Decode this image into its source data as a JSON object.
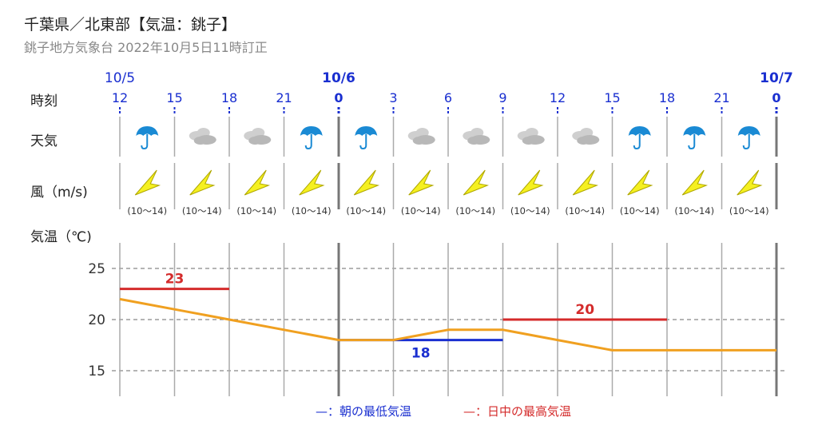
{
  "header": {
    "title": "千葉県／北東部【気温：銚子】",
    "subtitle": "銚子地方気象台 2022年10月5日11時訂正"
  },
  "row_labels": {
    "time": "時刻",
    "weather": "天気",
    "wind": "風（m/s)",
    "temp": "気温（℃)"
  },
  "dates": [
    {
      "label": "10/5",
      "slot": 0,
      "bold": false
    },
    {
      "label": "10/6",
      "slot": 4,
      "bold": true
    },
    {
      "label": "10/7",
      "slot": 12,
      "bold": true
    }
  ],
  "hours": [
    "12",
    "15",
    "18",
    "21",
    "0",
    "3",
    "6",
    "9",
    "12",
    "15",
    "18",
    "21",
    "0"
  ],
  "bold_hour_slots": [
    4,
    12
  ],
  "weather": [
    "rain",
    "cloudy",
    "cloudy",
    "rain",
    "rain",
    "cloudy",
    "cloudy",
    "cloudy",
    "cloudy",
    "rain",
    "rain",
    "rain"
  ],
  "wind": {
    "range_label": "(10～14)",
    "count": 12
  },
  "legend": {
    "min_label": "—：朝の最低気温",
    "max_label": "—：日中の最高気温"
  },
  "colors": {
    "hour_blue": "#1a2fd0",
    "min_line": "#1a2fd0",
    "max_line": "#d42b2b",
    "temp_line": "#f0a020",
    "rain_icon": "#1a8ad4",
    "cloud_icon": "#b8b8b8",
    "wind_icon": "#f5f020"
  },
  "chart_data": {
    "type": "line",
    "xlabel": "",
    "ylabel": "気温（℃)",
    "ylim": [
      12.5,
      27
    ],
    "yticks": [
      15,
      20,
      25
    ],
    "grid": true,
    "x": [
      "10/5 12",
      "10/5 15",
      "10/5 18",
      "10/5 21",
      "10/6 0",
      "10/6 3",
      "10/6 6",
      "10/6 9",
      "10/6 12",
      "10/6 15",
      "10/6 18",
      "10/6 21",
      "10/7 0"
    ],
    "series": [
      {
        "values": [
          22,
          21,
          20,
          19,
          18,
          18,
          19,
          19,
          18,
          17,
          17,
          17,
          17
        ]
      }
    ],
    "min_max": [
      {
        "kind": "max",
        "value": 23,
        "label": "23",
        "from_slot": 0,
        "to_slot": 2
      },
      {
        "kind": "min",
        "value": 18,
        "label": "18",
        "from_slot": 4,
        "to_slot": 7
      },
      {
        "kind": "max",
        "value": 20,
        "label": "20",
        "from_slot": 7,
        "to_slot": 10
      }
    ]
  }
}
